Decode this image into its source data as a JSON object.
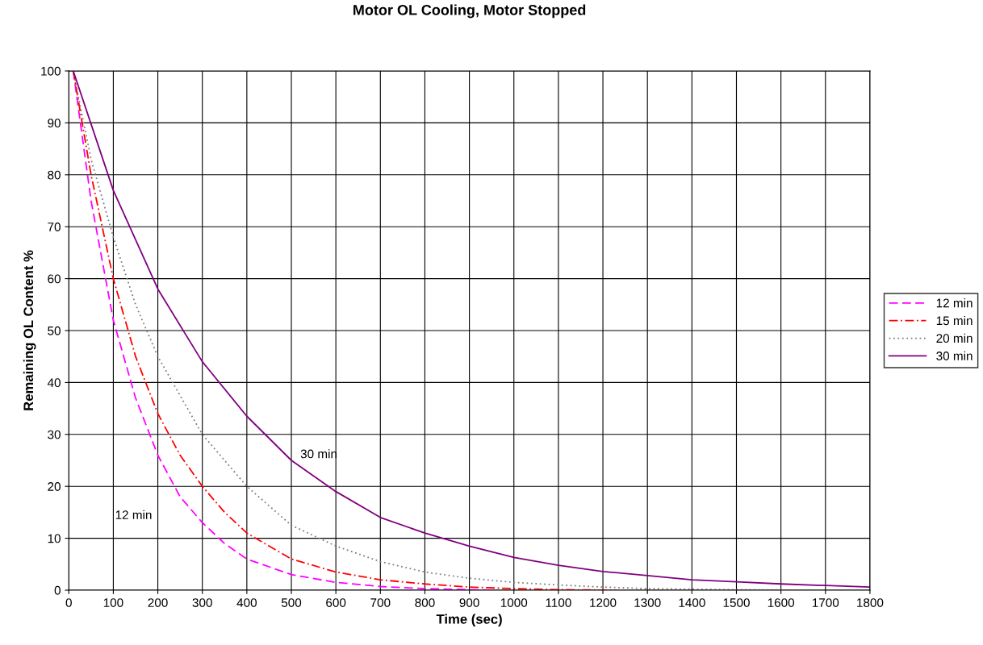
{
  "chart_data": {
    "type": "line",
    "title": "Motor OL Cooling, Motor Stopped",
    "xlabel": "Time (sec)",
    "ylabel": "Remaining OL Content %",
    "xlim": [
      0,
      1800
    ],
    "xticks": [
      0,
      100,
      200,
      300,
      400,
      500,
      600,
      700,
      800,
      900,
      1000,
      1100,
      1200,
      1300,
      1400,
      1500,
      1600,
      1700,
      1800
    ],
    "ylim": [
      0,
      100
    ],
    "yticks": [
      0,
      10,
      20,
      30,
      40,
      50,
      60,
      70,
      80,
      90,
      100
    ],
    "grid": true,
    "legend": "right",
    "marker": "none",
    "annotations": [
      {
        "text": "30 min",
        "x": 500,
        "y": 25
      },
      {
        "text": "12 min",
        "x": 250,
        "y": 18
      }
    ],
    "series": [
      {
        "name": "12 min",
        "color": "#ff00ff",
        "line_style": "dashed",
        "x": [
          10,
          50,
          100,
          150,
          200,
          250,
          300,
          350,
          400,
          500,
          600,
          700,
          800,
          900,
          950
        ],
        "values": [
          100,
          75,
          52,
          37,
          26,
          18,
          13,
          9,
          6,
          3,
          1.5,
          0.7,
          0.3,
          0.1,
          0
        ]
      },
      {
        "name": "15 min",
        "color": "#ff0000",
        "line_style": "dashdot",
        "x": [
          10,
          50,
          100,
          150,
          200,
          250,
          300,
          350,
          400,
          500,
          600,
          700,
          800,
          900,
          1000,
          1100,
          1230
        ],
        "values": [
          100,
          80,
          60,
          45,
          34,
          26,
          20,
          15,
          11,
          6,
          3.5,
          2,
          1.2,
          0.6,
          0.3,
          0.1,
          0
        ]
      },
      {
        "name": "20 min",
        "color": "#808080",
        "line_style": "dotted",
        "x": [
          10,
          50,
          100,
          150,
          200,
          300,
          400,
          500,
          600,
          700,
          800,
          900,
          1000,
          1100,
          1200,
          1300,
          1400,
          1500,
          1650
        ],
        "values": [
          100,
          83,
          68,
          55,
          45,
          30,
          20,
          12.5,
          8.5,
          5.5,
          3.5,
          2.3,
          1.5,
          1,
          0.6,
          0.3,
          0.2,
          0.1,
          0
        ]
      },
      {
        "name": "30 min",
        "color": "#800080",
        "line_style": "solid",
        "x": [
          10,
          100,
          200,
          300,
          400,
          500,
          600,
          700,
          800,
          900,
          1000,
          1100,
          1200,
          1300,
          1400,
          1500,
          1600,
          1700,
          1800
        ],
        "values": [
          100,
          77,
          58,
          44,
          33.5,
          25,
          19,
          14,
          11,
          8.5,
          6.3,
          4.8,
          3.6,
          2.8,
          2,
          1.6,
          1.2,
          0.9,
          0.6
        ]
      }
    ]
  }
}
